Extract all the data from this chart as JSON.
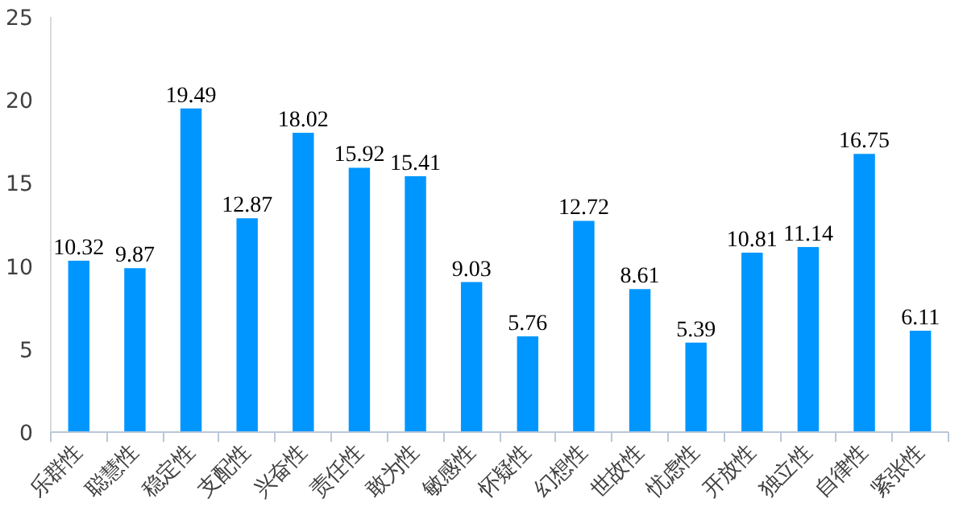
{
  "chart_data": {
    "type": "bar",
    "categories": [
      "乐群性",
      "聪慧性",
      "稳定性",
      "支配性",
      "兴奋性",
      "责任性",
      "敢为性",
      "敏感性",
      "怀疑性",
      "幻想性",
      "世故性",
      "忧虑性",
      "开放性",
      "独立性",
      "自律性",
      "紧张性"
    ],
    "values": [
      10.32,
      9.87,
      19.49,
      12.87,
      18.02,
      15.92,
      15.41,
      9.03,
      5.76,
      12.72,
      8.61,
      5.39,
      10.81,
      11.14,
      16.75,
      6.11
    ],
    "color": "#0096ff",
    "ylim": [
      0,
      25
    ],
    "yticks": [
      0,
      5,
      10,
      15,
      20,
      25
    ],
    "data_labels": true,
    "grid": false
  }
}
